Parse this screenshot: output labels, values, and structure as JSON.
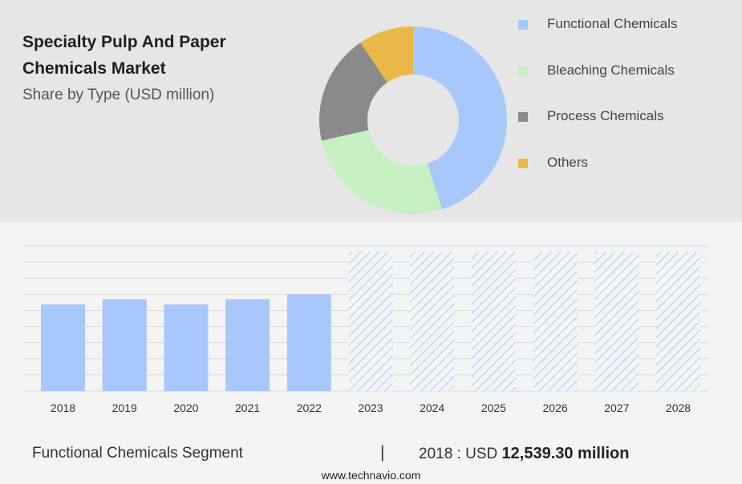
{
  "title_line1": "Specialty Pulp And Paper",
  "title_line2": "Chemicals Market",
  "subtitle": "Share by Type (USD million)",
  "colors": {
    "bar": "#a8c7fa",
    "hatch": "#a8c7fa",
    "grid": "#d9d9d9"
  },
  "chart_data": [
    {
      "type": "pie",
      "donut": true,
      "slices": [
        {
          "label": "Functional Chemicals",
          "value": 45,
          "color": "#a8c7fa"
        },
        {
          "label": "Bleaching Chemicals",
          "value": 26.5,
          "color": "#c7f0c2"
        },
        {
          "label": "Process Chemicals",
          "value": 19,
          "color": "#8a8a8a"
        },
        {
          "label": "Others",
          "value": 9.5,
          "color": "#e8b949"
        }
      ],
      "legend_position": "right"
    },
    {
      "type": "bar",
      "categories": [
        "2018",
        "2019",
        "2020",
        "2021",
        "2022",
        "2023",
        "2024",
        "2025",
        "2026",
        "2027",
        "2028"
      ],
      "values": [
        12539.3,
        13300,
        12539.3,
        13300,
        14000,
        null,
        null,
        null,
        null,
        null,
        null
      ],
      "forecast_categories": [
        "2023",
        "2024",
        "2025",
        "2026",
        "2027",
        "2028"
      ],
      "forecast_style": "hatched",
      "ylim": [
        0,
        21000
      ],
      "grid": true
    }
  ],
  "footer": {
    "segment": "Functional Chemicals Segment",
    "separator": "|",
    "year_label": "2018 : USD",
    "value": "12,539.30 million"
  },
  "website": "www.technavio.com"
}
